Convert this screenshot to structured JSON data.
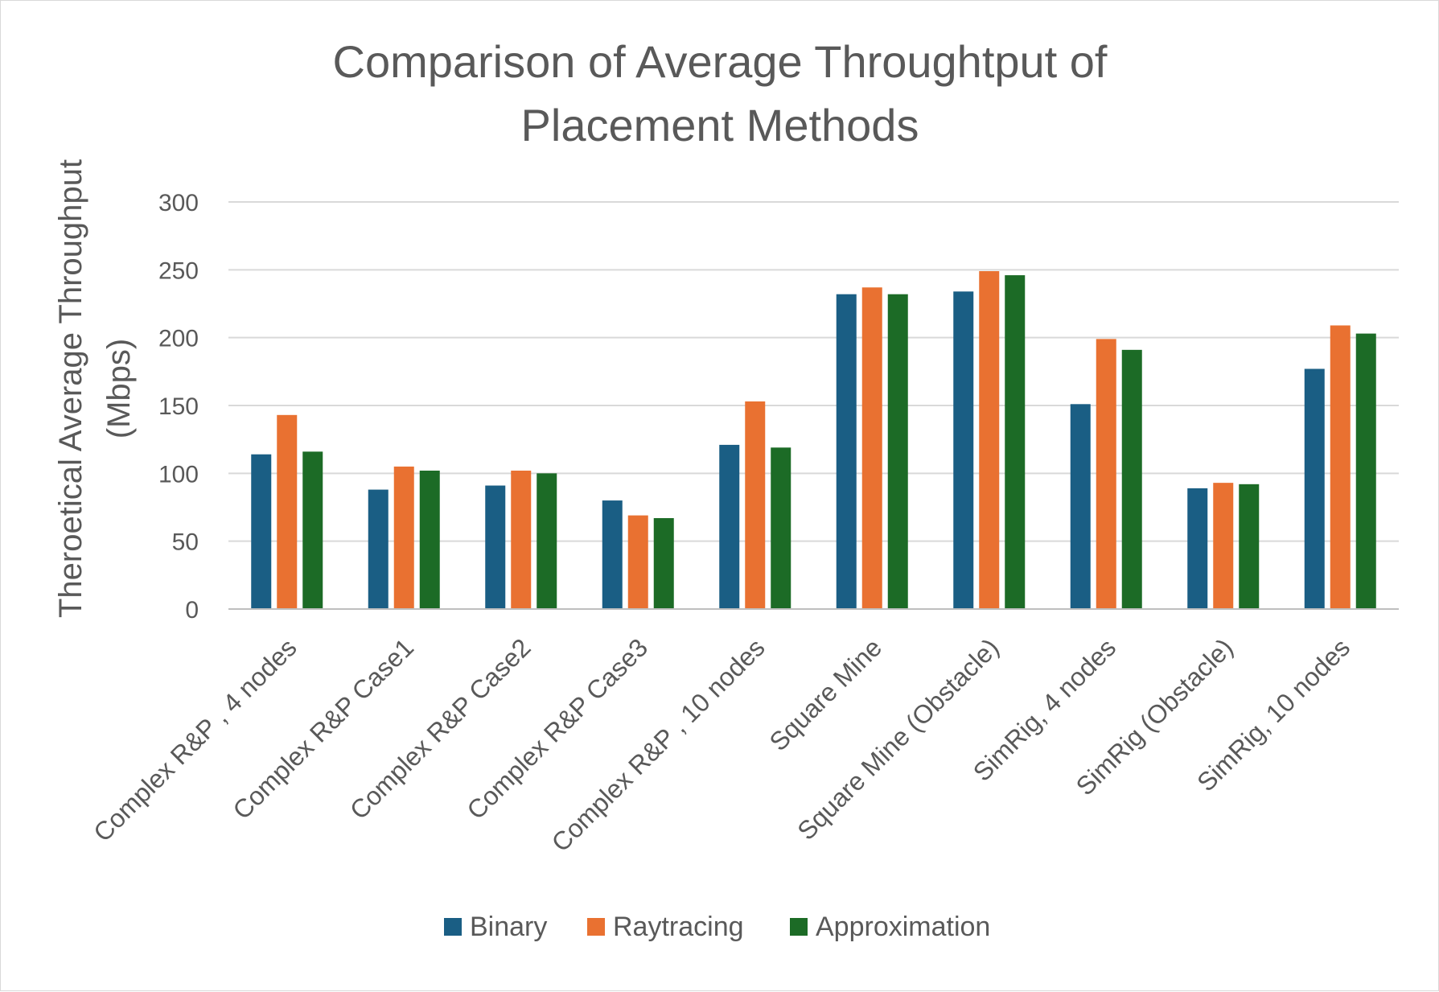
{
  "chart_data": {
    "type": "bar",
    "title_lines": [
      "Comparison of Average Throughtput of",
      "Placement Methods"
    ],
    "ylabel_lines": [
      "Theroetical Average Throughput",
      "(Mbps)"
    ],
    "xlabel": "",
    "ylim": [
      0,
      300
    ],
    "yticks": [
      0,
      50,
      100,
      150,
      200,
      250,
      300
    ],
    "grid": true,
    "legend_position": "bottom",
    "categories": [
      "Complex R&P , 4 nodes",
      "Complex R&P Case1",
      "Complex R&P Case2",
      "Complex R&P Case3",
      "Complex R&P , 10 nodes",
      "Square Mine",
      "Square Mine (Obstacle)",
      "SimRig, 4 nodes",
      "SimRig (Obstacle)",
      "SimRig, 10 nodes"
    ],
    "series": [
      {
        "name": "Binary",
        "color": "#1a5e84",
        "values": [
          114,
          88,
          91,
          80,
          121,
          232,
          234,
          151,
          89,
          177
        ]
      },
      {
        "name": "Raytracing",
        "color": "#e97131",
        "values": [
          143,
          105,
          102,
          69,
          153,
          237,
          249,
          199,
          93,
          209
        ]
      },
      {
        "name": "Approximation",
        "color": "#1c6b26",
        "values": [
          116,
          102,
          100,
          67,
          119,
          232,
          246,
          191,
          92,
          203
        ]
      }
    ]
  }
}
